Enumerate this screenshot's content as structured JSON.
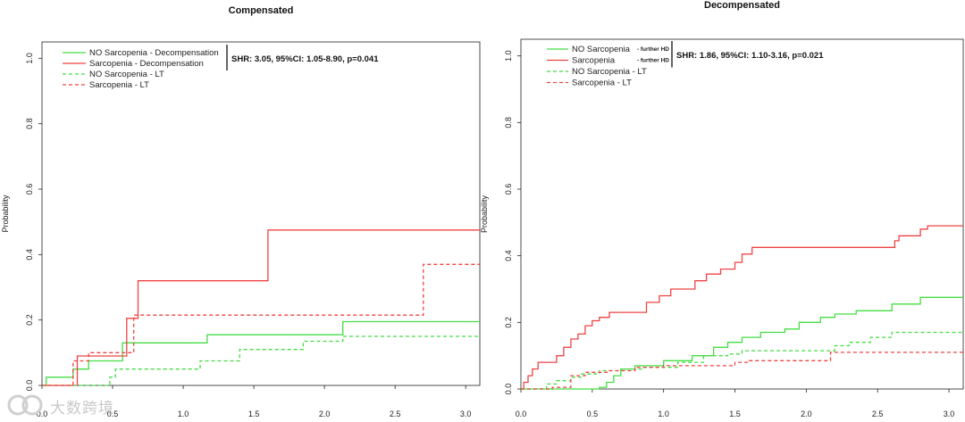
{
  "chart_data": [
    {
      "type": "line",
      "step": true,
      "title": "Compensated",
      "xlabel": "",
      "ylabel": "Probability",
      "xlim": [
        0,
        3.1
      ],
      "ylim": [
        0,
        1.05
      ],
      "x_ticks": [
        "0.0",
        "0.5",
        "1.0",
        "1.5",
        "2.0",
        "2.5",
        "3.0"
      ],
      "y_ticks": [
        "0.0",
        "0.2",
        "0.4",
        "0.6",
        "0.8",
        "1.0"
      ],
      "legend": {
        "placement": "top-left",
        "entries": [
          {
            "label": "NO Sarcopenia - Decompensation",
            "sub": "",
            "color": "#44dd44",
            "dash": false
          },
          {
            "label": "Sarcopenia - Decompensation",
            "sub": "",
            "color": "#ee4444",
            "dash": false
          },
          {
            "label": "NO Sarcopenia - LT",
            "sub": "",
            "color": "#44dd44",
            "dash": true
          },
          {
            "label": "Sarcopenia - LT",
            "sub": "",
            "color": "#ee4444",
            "dash": true
          }
        ],
        "annotation": "SHR: 3.05, 95%CI: 1.05-8.90, p=0.041"
      },
      "series": [
        {
          "name": "NO Sarcopenia - Decompensation",
          "color": "#44dd44",
          "dash": false,
          "points": [
            [
              0.0,
              0.0
            ],
            [
              0.03,
              0.025
            ],
            [
              0.22,
              0.05
            ],
            [
              0.33,
              0.075
            ],
            [
              0.57,
              0.13
            ],
            [
              1.17,
              0.155
            ],
            [
              2.13,
              0.195
            ],
            [
              3.1,
              0.195
            ]
          ]
        },
        {
          "name": "Sarcopenia - Decompensation",
          "color": "#ee4444",
          "dash": false,
          "points": [
            [
              0.0,
              0.0
            ],
            [
              0.25,
              0.09
            ],
            [
              0.6,
              0.205
            ],
            [
              0.68,
              0.32
            ],
            [
              1.6,
              0.475
            ],
            [
              3.1,
              0.475
            ]
          ]
        },
        {
          "name": "NO Sarcopenia - LT",
          "color": "#44dd44",
          "dash": true,
          "points": [
            [
              0.0,
              0.0
            ],
            [
              0.48,
              0.025
            ],
            [
              0.52,
              0.05
            ],
            [
              1.12,
              0.075
            ],
            [
              1.4,
              0.11
            ],
            [
              1.85,
              0.135
            ],
            [
              2.13,
              0.15
            ],
            [
              3.1,
              0.15
            ]
          ]
        },
        {
          "name": "Sarcopenia - LT",
          "color": "#ee4444",
          "dash": true,
          "points": [
            [
              0.0,
              0.0
            ],
            [
              0.22,
              0.075
            ],
            [
              0.33,
              0.1
            ],
            [
              0.65,
              0.215
            ],
            [
              2.7,
              0.37
            ],
            [
              3.1,
              0.37
            ]
          ]
        }
      ]
    },
    {
      "type": "line",
      "step": true,
      "title": "Decompensated",
      "xlabel": "",
      "ylabel": "Probability",
      "xlim": [
        0,
        3.1
      ],
      "ylim": [
        0,
        1.05
      ],
      "x_ticks": [
        "0.0",
        "0.5",
        "1.0",
        "1.5",
        "2.0",
        "2.5",
        "3.0"
      ],
      "y_ticks": [
        "0.0",
        "0.2",
        "0.4",
        "0.6",
        "0.8",
        "1.0"
      ],
      "legend": {
        "placement": "top-left",
        "entries": [
          {
            "label": "NO Sarcopenia",
            "sub": "- further HD",
            "color": "#44dd44",
            "dash": false
          },
          {
            "label": "Sarcopenia",
            "sub": "- further HD",
            "color": "#ee4444",
            "dash": false
          },
          {
            "label": "NO Sarcopenia - LT",
            "sub": "",
            "color": "#44dd44",
            "dash": true
          },
          {
            "label": "Sarcopenia - LT",
            "sub": "",
            "color": "#ee4444",
            "dash": true
          }
        ],
        "annotation": "SHR: 1.86, 95%CI: 1.10-3.16, p=0.021"
      },
      "series": [
        {
          "name": "Sarcopenia - further HD",
          "color": "#ee4444",
          "dash": false,
          "points": [
            [
              0.0,
              0.0
            ],
            [
              0.02,
              0.02
            ],
            [
              0.05,
              0.04
            ],
            [
              0.08,
              0.06
            ],
            [
              0.12,
              0.08
            ],
            [
              0.25,
              0.1
            ],
            [
              0.3,
              0.125
            ],
            [
              0.35,
              0.15
            ],
            [
              0.4,
              0.165
            ],
            [
              0.45,
              0.19
            ],
            [
              0.5,
              0.205
            ],
            [
              0.55,
              0.215
            ],
            [
              0.62,
              0.23
            ],
            [
              0.88,
              0.26
            ],
            [
              0.97,
              0.28
            ],
            [
              1.05,
              0.3
            ],
            [
              1.22,
              0.325
            ],
            [
              1.3,
              0.345
            ],
            [
              1.4,
              0.36
            ],
            [
              1.5,
              0.38
            ],
            [
              1.55,
              0.405
            ],
            [
              1.62,
              0.425
            ],
            [
              2.62,
              0.445
            ],
            [
              2.65,
              0.46
            ],
            [
              2.8,
              0.48
            ],
            [
              2.85,
              0.49
            ],
            [
              3.1,
              0.49
            ]
          ]
        },
        {
          "name": "NO Sarcopenia - further HD",
          "color": "#44dd44",
          "dash": false,
          "points": [
            [
              0.0,
              0.0
            ],
            [
              0.55,
              0.005
            ],
            [
              0.6,
              0.02
            ],
            [
              0.65,
              0.04
            ],
            [
              0.7,
              0.06
            ],
            [
              0.8,
              0.07
            ],
            [
              1.0,
              0.085
            ],
            [
              1.2,
              0.1
            ],
            [
              1.35,
              0.125
            ],
            [
              1.45,
              0.14
            ],
            [
              1.55,
              0.155
            ],
            [
              1.68,
              0.17
            ],
            [
              1.85,
              0.18
            ],
            [
              1.95,
              0.2
            ],
            [
              2.1,
              0.215
            ],
            [
              2.2,
              0.225
            ],
            [
              2.35,
              0.235
            ],
            [
              2.6,
              0.255
            ],
            [
              2.8,
              0.275
            ],
            [
              3.1,
              0.275
            ]
          ]
        },
        {
          "name": "NO Sarcopenia - LT",
          "color": "#44dd44",
          "dash": true,
          "points": [
            [
              0.0,
              0.0
            ],
            [
              0.18,
              0.015
            ],
            [
              0.25,
              0.025
            ],
            [
              0.35,
              0.035
            ],
            [
              0.42,
              0.045
            ],
            [
              0.55,
              0.055
            ],
            [
              0.7,
              0.06
            ],
            [
              0.85,
              0.065
            ],
            [
              1.1,
              0.08
            ],
            [
              1.28,
              0.1
            ],
            [
              1.45,
              0.105
            ],
            [
              1.55,
              0.115
            ],
            [
              2.2,
              0.13
            ],
            [
              2.3,
              0.14
            ],
            [
              2.45,
              0.155
            ],
            [
              2.6,
              0.17
            ],
            [
              3.1,
              0.17
            ]
          ]
        },
        {
          "name": "Sarcopenia - LT",
          "color": "#ee4444",
          "dash": true,
          "points": [
            [
              0.0,
              0.0
            ],
            [
              0.22,
              0.005
            ],
            [
              0.35,
              0.04
            ],
            [
              0.45,
              0.05
            ],
            [
              0.62,
              0.055
            ],
            [
              0.8,
              0.065
            ],
            [
              1.0,
              0.07
            ],
            [
              1.5,
              0.08
            ],
            [
              1.6,
              0.085
            ],
            [
              2.17,
              0.11
            ],
            [
              3.1,
              0.11
            ]
          ]
        }
      ]
    }
  ],
  "watermark": "大数跨境"
}
